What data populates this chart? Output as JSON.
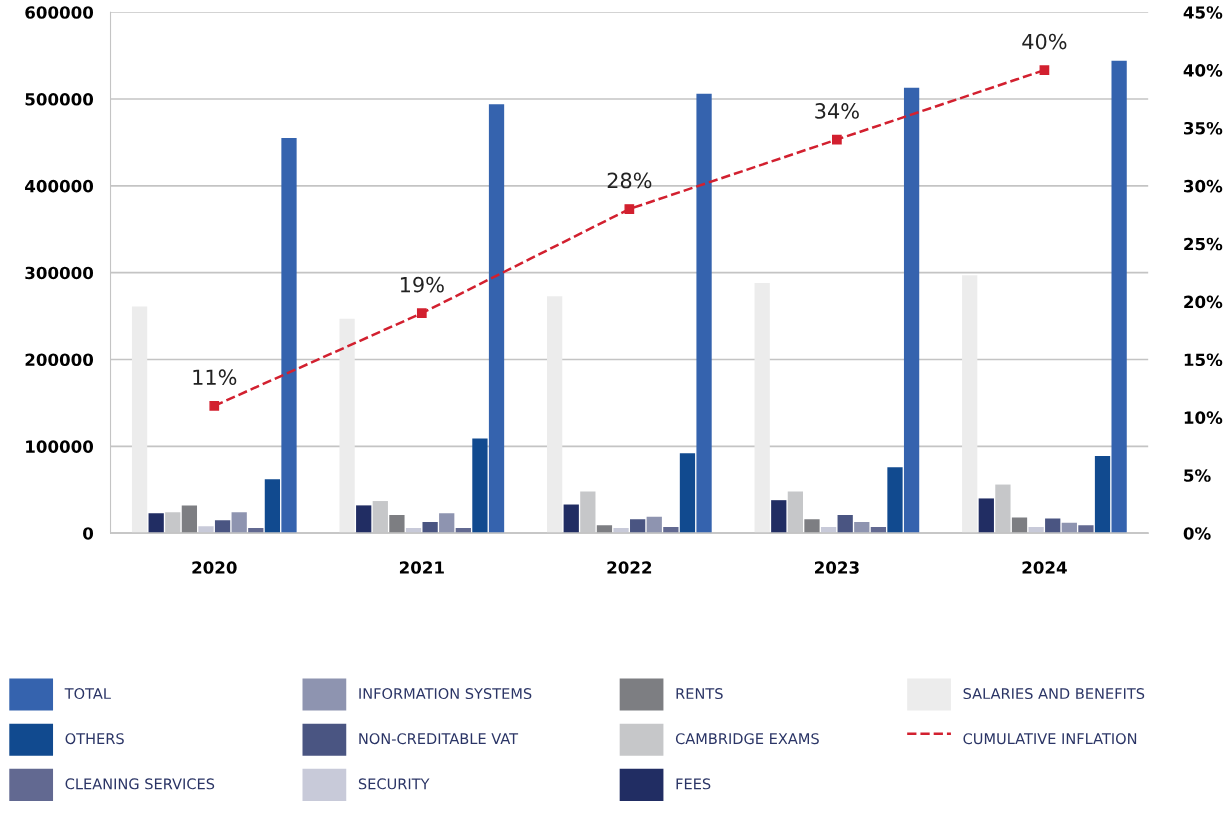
{
  "chart_data": {
    "type": "bar",
    "categories": [
      "2020",
      "2021",
      "2022",
      "2023",
      "2024"
    ],
    "series": [
      {
        "name": "SALARIES AND BENEFITS",
        "color": "#ececec",
        "values": [
          261000,
          247000,
          273000,
          288000,
          297000
        ]
      },
      {
        "name": "FEES",
        "color": "#212d63",
        "values": [
          23000,
          32000,
          33000,
          38000,
          40000
        ]
      },
      {
        "name": "CAMBRIDGE EXAMS",
        "color": "#c6c7c9",
        "values": [
          24000,
          37000,
          48000,
          48000,
          56000
        ]
      },
      {
        "name": "RENTS",
        "color": "#7d7e82",
        "values": [
          32000,
          21000,
          9000,
          16000,
          18000
        ]
      },
      {
        "name": "SECURITY",
        "color": "#c8cad9",
        "values": [
          8000,
          6000,
          6000,
          7000,
          7000
        ]
      },
      {
        "name": "NON-CREDITABLE VAT",
        "color": "#4a5582",
        "values": [
          15000,
          13000,
          16000,
          21000,
          17000
        ]
      },
      {
        "name": "INFORMATION SYSTEMS",
        "color": "#8e94b0",
        "values": [
          24000,
          23000,
          19000,
          13000,
          12000
        ]
      },
      {
        "name": "CLEANING SERVICES",
        "color": "#626991",
        "values": [
          6000,
          6000,
          7000,
          7000,
          9000
        ]
      },
      {
        "name": "OTHERS",
        "color": "#114a8f",
        "values": [
          62000,
          109000,
          92000,
          76000,
          89000
        ]
      },
      {
        "name": "TOTAL",
        "color": "#3563ae",
        "values": [
          455000,
          494000,
          506000,
          513000,
          544000
        ]
      },
      {
        "name": "CUMULATIVE INFLATION",
        "type": "line",
        "axis": "y2",
        "color": "#d2202f",
        "line_style": "dashed",
        "marker": "square",
        "data_labels": true,
        "value_labels": [
          "11%",
          "19%",
          "28%",
          "34%",
          "40%"
        ],
        "values": [
          11,
          19,
          28,
          34,
          40
        ]
      }
    ],
    "ylim": [
      0,
      600000
    ],
    "yticks": [
      0,
      100000,
      200000,
      300000,
      400000,
      500000,
      600000
    ],
    "y2lim": [
      0,
      45
    ],
    "y2ticks": [
      {
        "value": 0,
        "label": "0%"
      },
      {
        "value": 5,
        "label": "5%"
      },
      {
        "value": 10,
        "label": "10%"
      },
      {
        "value": 15,
        "label": "15%"
      },
      {
        "value": 20,
        "label": "20%"
      },
      {
        "value": 25,
        "label": "25%"
      },
      {
        "value": 30,
        "label": "30%"
      },
      {
        "value": 35,
        "label": "35%"
      },
      {
        "value": 40,
        "label": "40%"
      },
      {
        "value": 45,
        "label": "45%"
      }
    ],
    "grid": "y",
    "legend": "bottom"
  }
}
